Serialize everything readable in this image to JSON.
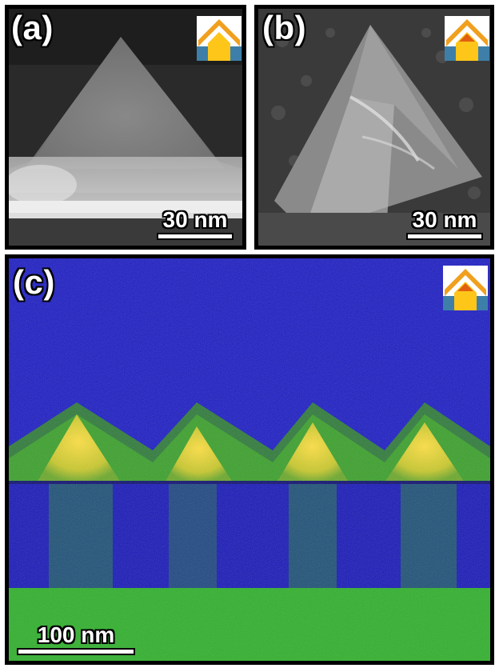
{
  "panels": {
    "a": {
      "label": "(a)",
      "scale": "30 nm"
    },
    "b": {
      "label": "(b)",
      "scale": "30 nm"
    },
    "c": {
      "label": "(c)",
      "scale": "100 nm"
    }
  },
  "colors": {
    "inset_orange": "#f0a01e",
    "inset_yellow": "#ffc61a",
    "inset_blue": "#3d7fa8",
    "eds_blue": "#1a1ad0",
    "eds_green": "#2ea828",
    "eds_yellow": "#e6d22a"
  }
}
